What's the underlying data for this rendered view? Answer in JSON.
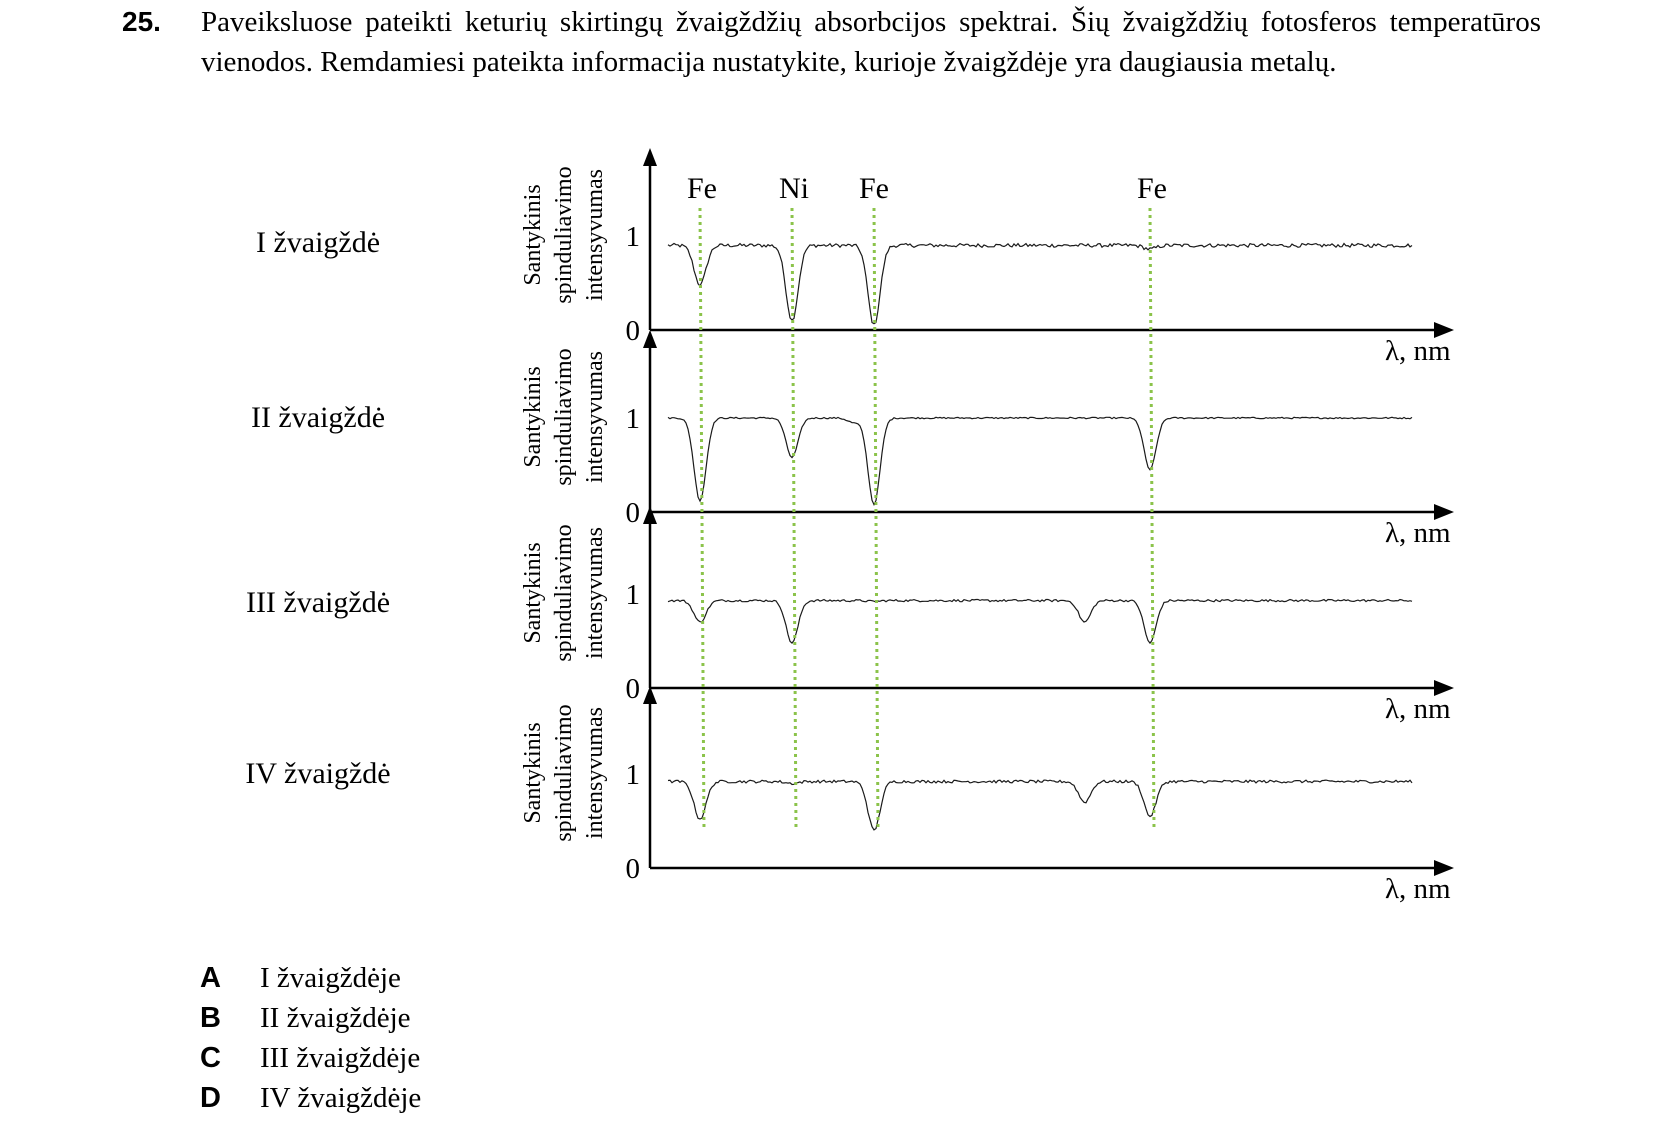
{
  "question": {
    "number": "25.",
    "text": "Paveiksluose pateikti keturių skirtingų žvaigždžių absorbcijos spektrai. Šių žvaigždžių fotosferos temperatūros vienodos. Remdamiesi pateikta informacija nustatykite, kurioje žvaigždėje yra daugiausia metalų."
  },
  "chart_data": {
    "type": "line",
    "element_labels": [
      "Fe",
      "Ni",
      "Fe",
      "Fe"
    ],
    "panels": [
      {
        "star": "I žvaigždė",
        "ylabel": [
          "Santykinis",
          "spinduliavimo",
          "intensyvumas"
        ],
        "yticks": [
          "0",
          "1"
        ],
        "xlabel": "λ, nm",
        "continuum": 0.9,
        "noise": 0.02,
        "lines": [
          0.48,
          0.1,
          0.05,
          0.86
        ]
      },
      {
        "star": "II žvaigždė",
        "ylabel": [
          "Santykinis",
          "spinduliavimo",
          "intensyvumas"
        ],
        "yticks": [
          "0",
          "1"
        ],
        "xlabel": "λ, nm",
        "continuum": 1.0,
        "noise": 0.008,
        "lines": [
          0.12,
          0.58,
          0.08,
          0.45
        ],
        "extra_dips": [
          {
            "x": 0.25,
            "depth": 0.95
          }
        ]
      },
      {
        "star": "III žvaigždė",
        "ylabel": [
          "Santykinis",
          "spinduliavimo",
          "intensyvumas"
        ],
        "yticks": [
          "0",
          "1"
        ],
        "xlabel": "λ, nm",
        "continuum": 0.93,
        "noise": 0.012,
        "lines": [
          0.7,
          0.48,
          0.92,
          0.48
        ],
        "extra_dips": [
          {
            "x": 0.56,
            "depth": 0.7
          }
        ]
      },
      {
        "star": "IV žvaigždė",
        "ylabel": [
          "Santykinis",
          "spinduliavimo",
          "intensyvumas"
        ],
        "yticks": [
          "0",
          "1"
        ],
        "xlabel": "λ, nm",
        "continuum": 0.92,
        "noise": 0.015,
        "lines": [
          0.52,
          0.9,
          0.4,
          0.55
        ],
        "extra_dips": [
          {
            "x": 0.56,
            "depth": 0.7
          }
        ]
      }
    ],
    "colors": {
      "axis": "#000000",
      "spectrum": "#1a1a1a",
      "guide": "#8bc34a"
    }
  },
  "answers": [
    {
      "letter": "A",
      "text": "I žvaigždėje"
    },
    {
      "letter": "B",
      "text": "II žvaigždėje"
    },
    {
      "letter": "C",
      "text": "III žvaigždėje"
    },
    {
      "letter": "D",
      "text": "IV žvaigždėje"
    }
  ]
}
